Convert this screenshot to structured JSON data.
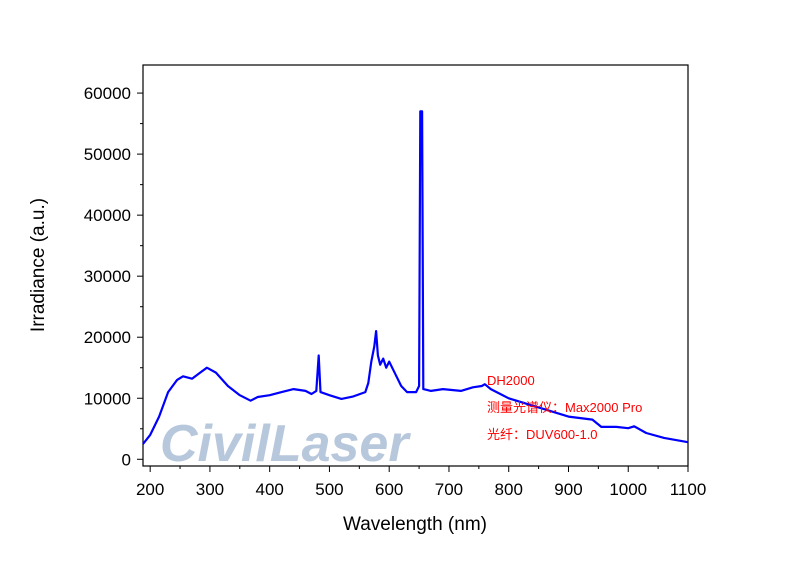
{
  "chart_data": {
    "type": "line",
    "title": "",
    "xlabel": "Wavelength (nm)",
    "ylabel": "Irradiance (a.u.)",
    "xlim": [
      188,
      1100
    ],
    "ylim": [
      -1100,
      64600
    ],
    "xticks": [
      200,
      300,
      400,
      500,
      600,
      700,
      800,
      900,
      1000,
      1100
    ],
    "yticks": [
      0,
      10000,
      20000,
      30000,
      40000,
      50000,
      60000
    ],
    "grid": false,
    "line_color": "#0000ff",
    "annotation_color": "#ff0000",
    "annotations": [
      "DH2000",
      "测量光谱仪：Max2000 Pro",
      "光纤：DUV600-1.0"
    ],
    "watermark": "CivilLaser",
    "series": [
      {
        "name": "DH2000",
        "x": [
          188,
          200,
          215,
          230,
          245,
          255,
          270,
          285,
          295,
          310,
          330,
          350,
          368,
          380,
          400,
          420,
          440,
          460,
          470,
          478,
          482,
          485,
          500,
          520,
          540,
          560,
          565,
          570,
          575,
          578,
          581,
          585,
          590,
          595,
          600,
          610,
          620,
          630,
          645,
          650,
          652,
          655,
          657,
          670,
          690,
          720,
          740,
          755,
          760,
          770,
          800,
          850,
          900,
          940,
          955,
          980,
          1000,
          1010,
          1030,
          1060,
          1100
        ],
        "y": [
          2500,
          4000,
          7000,
          11000,
          13000,
          13600,
          13200,
          14300,
          15000,
          14200,
          12000,
          10500,
          9600,
          10200,
          10500,
          11000,
          11500,
          11200,
          10700,
          11200,
          17000,
          11000,
          10500,
          9900,
          10300,
          11000,
          12500,
          16000,
          18500,
          21000,
          17000,
          15500,
          16500,
          15000,
          16000,
          14000,
          12000,
          11000,
          11000,
          12000,
          57000,
          57000,
          11500,
          11200,
          11500,
          11200,
          11800,
          12000,
          12300,
          11500,
          10000,
          8500,
          7000,
          6500,
          5300,
          5300,
          5100,
          5400,
          4300,
          3500,
          2800
        ]
      }
    ]
  }
}
